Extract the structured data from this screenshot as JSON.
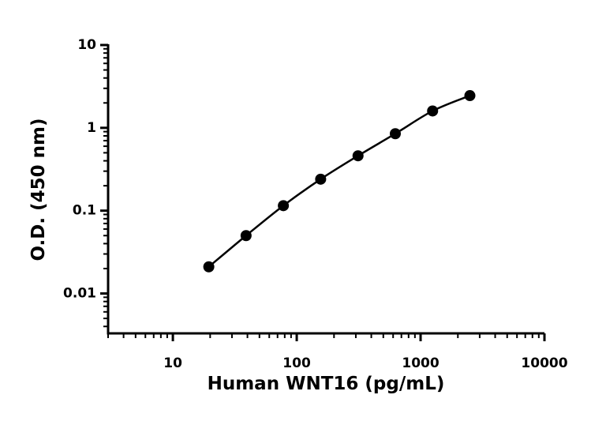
{
  "chart_data": {
    "type": "scatter",
    "x_label": "Human WNT16 (pg/mL)",
    "y_label": "O.D. (450 nm)",
    "x": [
      19.5,
      39,
      78,
      156,
      312.5,
      625,
      1250,
      2500
    ],
    "values": [
      0.021,
      0.05,
      0.115,
      0.24,
      0.46,
      0.85,
      1.6,
      2.45
    ],
    "color": "#000000",
    "xscale": "log",
    "yscale": "log",
    "xlim": [
      3,
      10000
    ],
    "xticks": [
      10,
      100,
      1000,
      10000
    ],
    "ylim": [
      0.0033,
      10
    ],
    "yticks": [
      0.01,
      0.1,
      1,
      10
    ],
    "curve": true
  }
}
